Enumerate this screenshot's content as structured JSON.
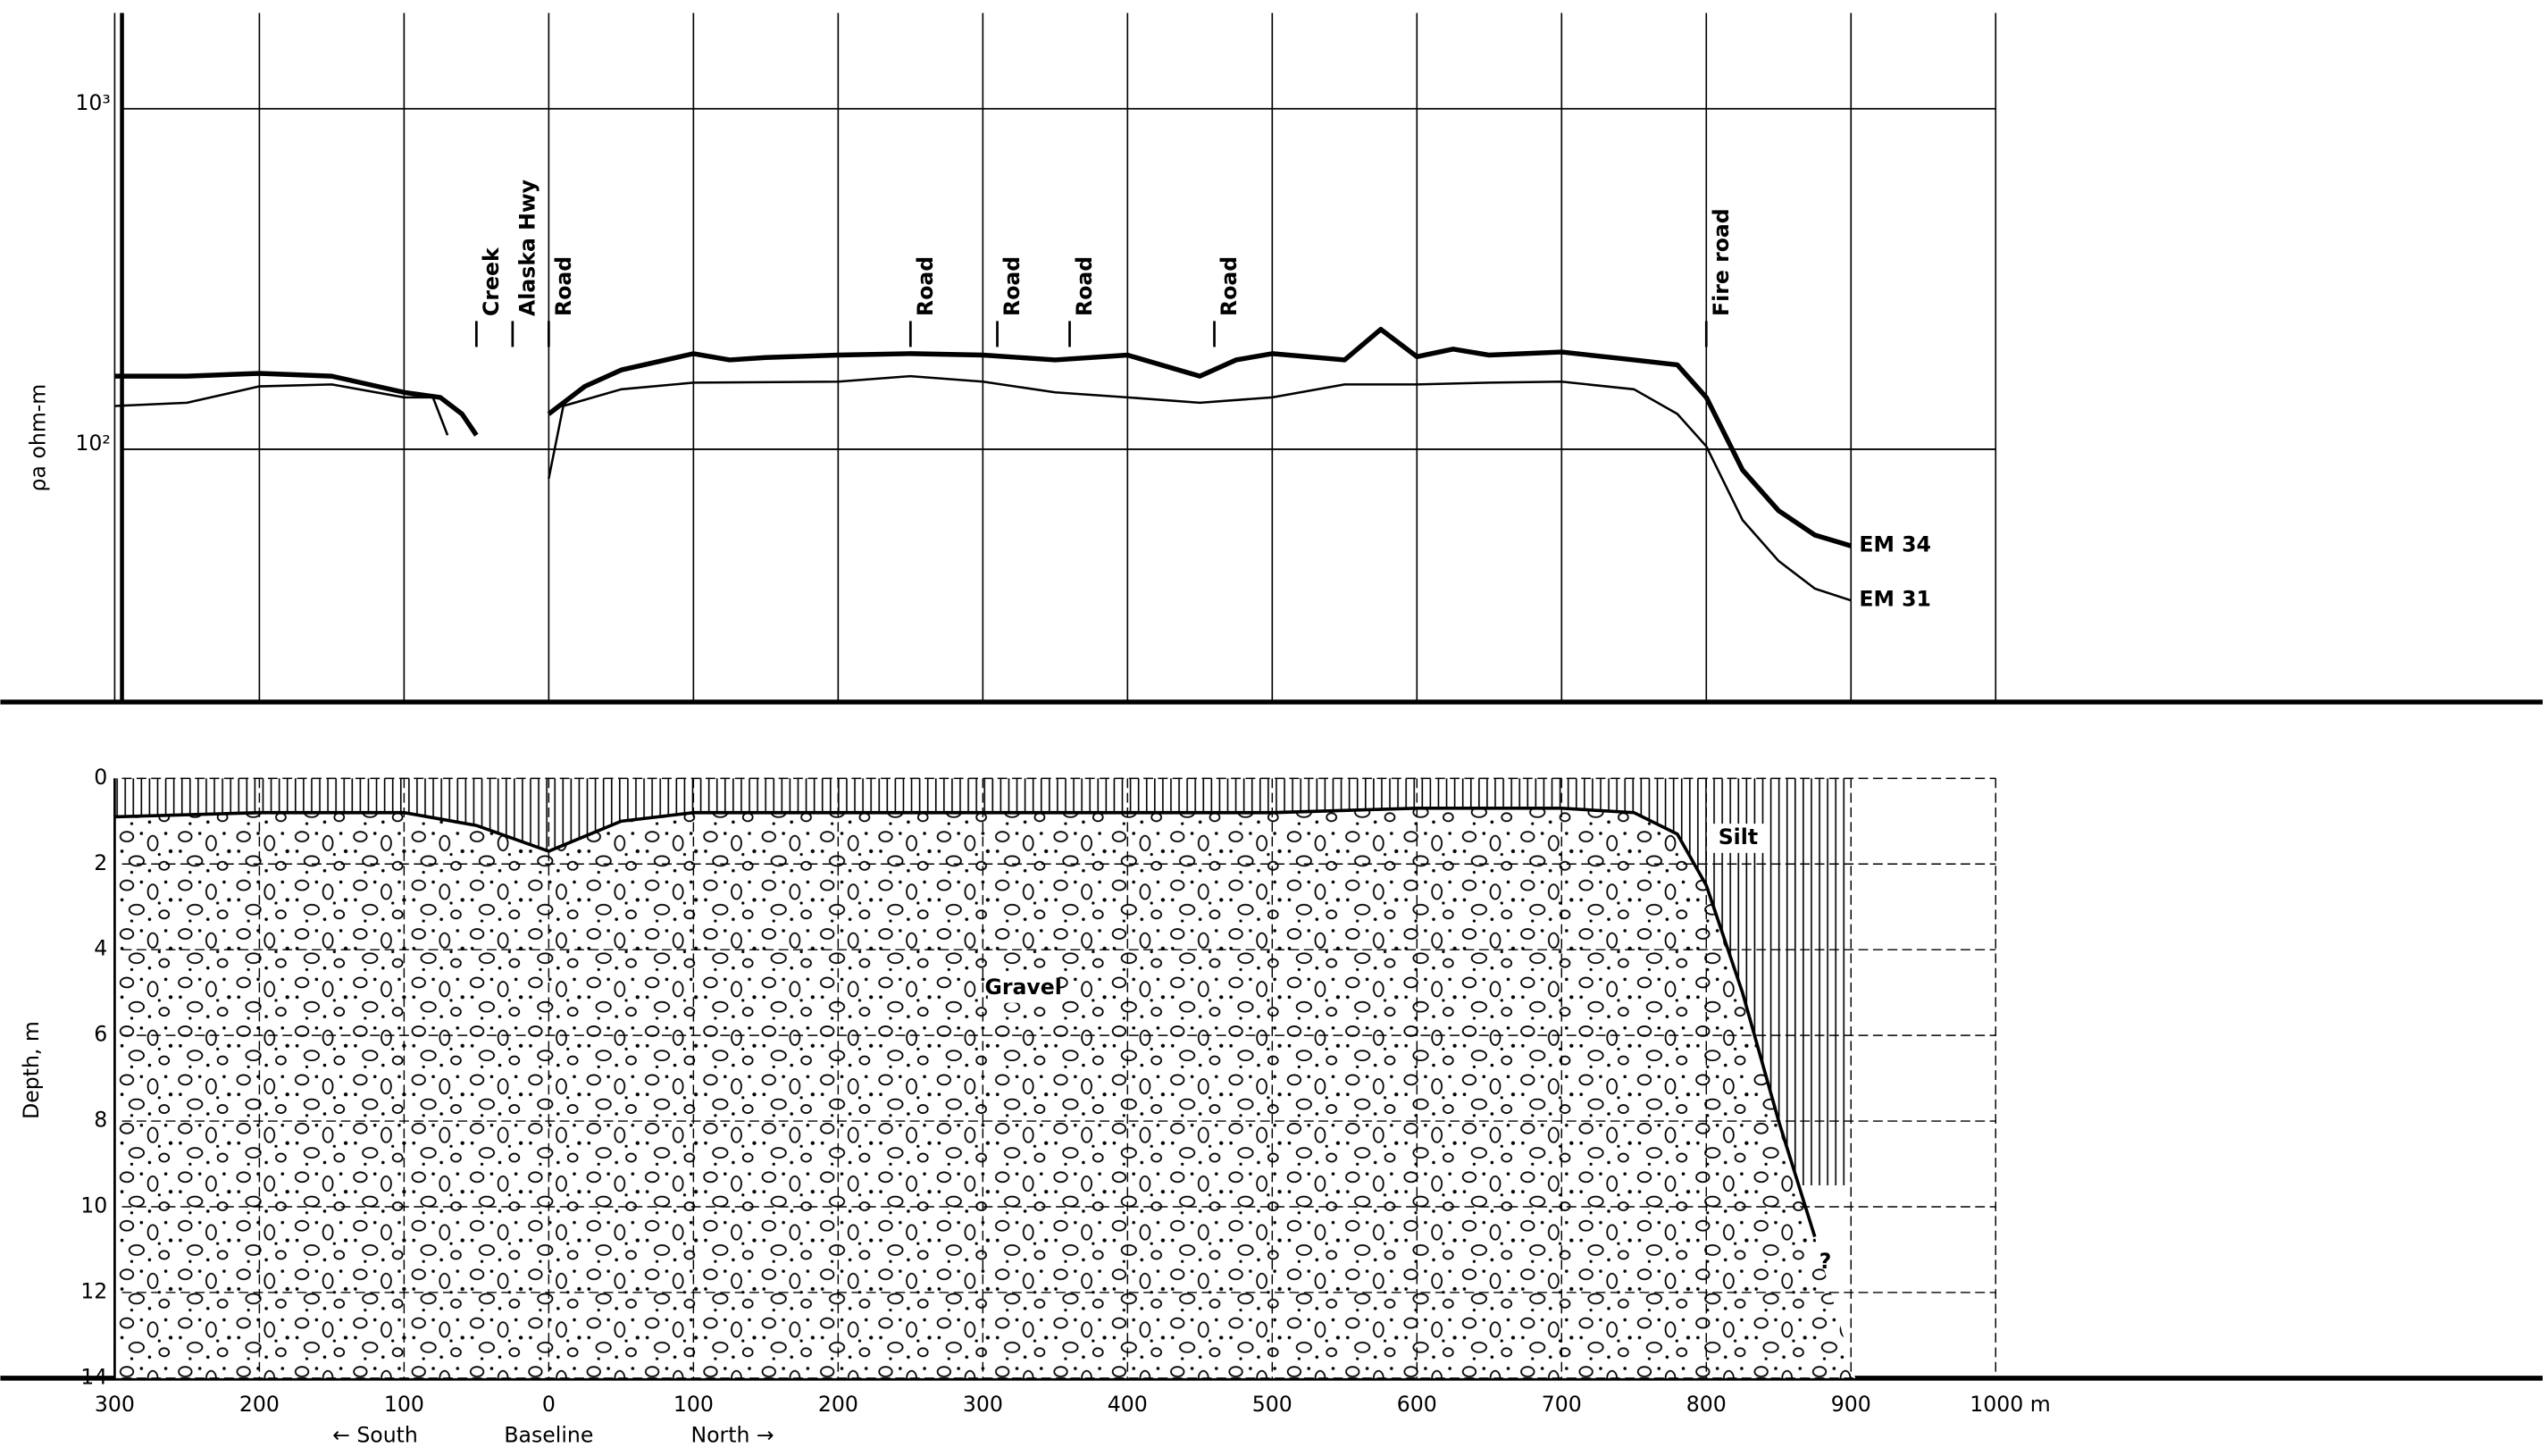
{
  "chart_data": [
    {
      "type": "line",
      "y_label": "ρa ohm-m",
      "log_scale": true,
      "grid": true,
      "xlim": [
        -379,
        1378
      ],
      "ylim": [
        18.1,
        1911
      ],
      "yticks": [
        {
          "value": 100,
          "label": "10²"
        },
        {
          "value": 1000,
          "label": "10³"
        }
      ],
      "series": [
        {
          "name": "EM 34",
          "color": "#000000",
          "line_width": 3,
          "x": [
            -300,
            -250,
            -200,
            -150,
            -100,
            -75,
            -60,
            -50,
            -25,
            0,
            25,
            50,
            100,
            125,
            150,
            200,
            250,
            300,
            350,
            400,
            450,
            475,
            500,
            550,
            575,
            600,
            625,
            650,
            700,
            750,
            780,
            800,
            825,
            850,
            875,
            900
          ],
          "values": [
            164,
            164,
            167,
            164,
            147,
            142,
            127,
            110,
            null,
            127,
            153,
            171,
            191,
            183,
            186,
            189,
            191,
            189,
            183,
            189,
            164,
            183,
            191,
            183,
            225,
            187,
            197,
            189,
            193,
            183,
            177,
            142,
            87,
            66,
            56,
            52
          ]
        },
        {
          "name": "EM 31",
          "color": "#000000",
          "line_width": 1.4,
          "x": [
            -300,
            -250,
            -200,
            -150,
            -100,
            -80,
            -70,
            -35,
            0,
            10,
            50,
            100,
            200,
            250,
            300,
            350,
            400,
            450,
            500,
            550,
            600,
            650,
            700,
            750,
            780,
            800,
            825,
            850,
            875,
            900
          ],
          "values": [
            134,
            137,
            153,
            155,
            142,
            142,
            110,
            null,
            82,
            134,
            150,
            157,
            158,
            164,
            158,
            147,
            142,
            137,
            142,
            155,
            155,
            157,
            158,
            150,
            127,
            102,
            62,
            47,
            39,
            36
          ]
        }
      ],
      "annotations": [
        {
          "text": "Creek",
          "x": -50
        },
        {
          "text": "Alaska Hwy",
          "x": -25
        },
        {
          "text": "Road",
          "x": 0
        },
        {
          "text": "Road",
          "x": 250
        },
        {
          "text": "Road",
          "x": 310
        },
        {
          "text": "Road",
          "x": 360
        },
        {
          "text": "Road",
          "x": 460
        },
        {
          "text": "Fire road",
          "x": 800
        }
      ]
    },
    {
      "type": "area",
      "y_label": "Depth, m",
      "grid": true,
      "xlim": [
        -379,
        1378
      ],
      "ylim": [
        14,
        -1.78
      ],
      "yticks": [
        0,
        2,
        4,
        6,
        8,
        10,
        12,
        14
      ],
      "xticks": [
        {
          "value": -300,
          "label": "300"
        },
        {
          "value": -200,
          "label": "200"
        },
        {
          "value": -100,
          "label": "100"
        },
        0,
        100,
        200,
        300,
        400,
        500,
        600,
        700,
        800,
        900,
        {
          "value": 1000,
          "label": "1000 m"
        }
      ],
      "x_notes": [
        {
          "text": "← South",
          "x": -120
        },
        {
          "text": "Baseline",
          "x": 0
        },
        {
          "text": "North →",
          "x": 127
        }
      ],
      "series": [
        {
          "name": "Gravel",
          "label_x": 328,
          "label_y": 4.9,
          "x": [
            -300,
            -200,
            -100,
            -50,
            0,
            50,
            100,
            200,
            300,
            400,
            500,
            600,
            700,
            750,
            780,
            800,
            825,
            850,
            875
          ],
          "values": [
            0.9,
            0.8,
            0.8,
            1.1,
            1.7,
            1.0,
            0.8,
            0.8,
            0.8,
            0.8,
            0.8,
            0.7,
            0.7,
            0.8,
            1.3,
            2.5,
            5.0,
            8.0,
            10.7
          ]
        }
      ],
      "upper_layer": {
        "name": "Silt",
        "x_end": 900,
        "depth_start": 0,
        "depth_end": 9.5,
        "label_x": 822,
        "label_y": 1.4
      },
      "annotations": [
        {
          "text": "?",
          "x": 878,
          "y": 11.3
        }
      ]
    }
  ]
}
